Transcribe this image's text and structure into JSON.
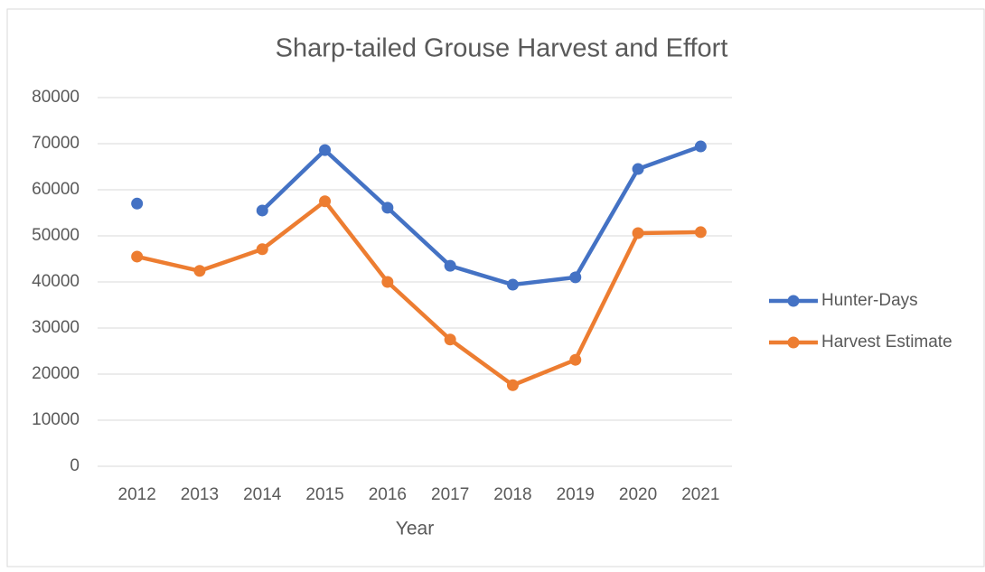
{
  "chart_data": {
    "type": "line",
    "title": "Sharp-tailed Grouse Harvest and Effort",
    "xlabel": "Year",
    "categories": [
      "2012",
      "2013",
      "2014",
      "2015",
      "2016",
      "2017",
      "2018",
      "2019",
      "2020",
      "2021"
    ],
    "series": [
      {
        "name": "Hunter-Days",
        "color": "#4472c4",
        "values": [
          57000,
          null,
          55500,
          68600,
          56100,
          43500,
          39400,
          41000,
          64500,
          69400
        ]
      },
      {
        "name": "Harvest Estimate",
        "color": "#ed7d31",
        "values": [
          45500,
          42400,
          47100,
          57500,
          40000,
          27500,
          17600,
          23100,
          50600,
          50800
        ]
      }
    ],
    "ylim": [
      0,
      80000
    ],
    "yticks": [
      0,
      10000,
      20000,
      30000,
      40000,
      50000,
      60000,
      70000,
      80000
    ],
    "grid": true,
    "legend": "right"
  }
}
